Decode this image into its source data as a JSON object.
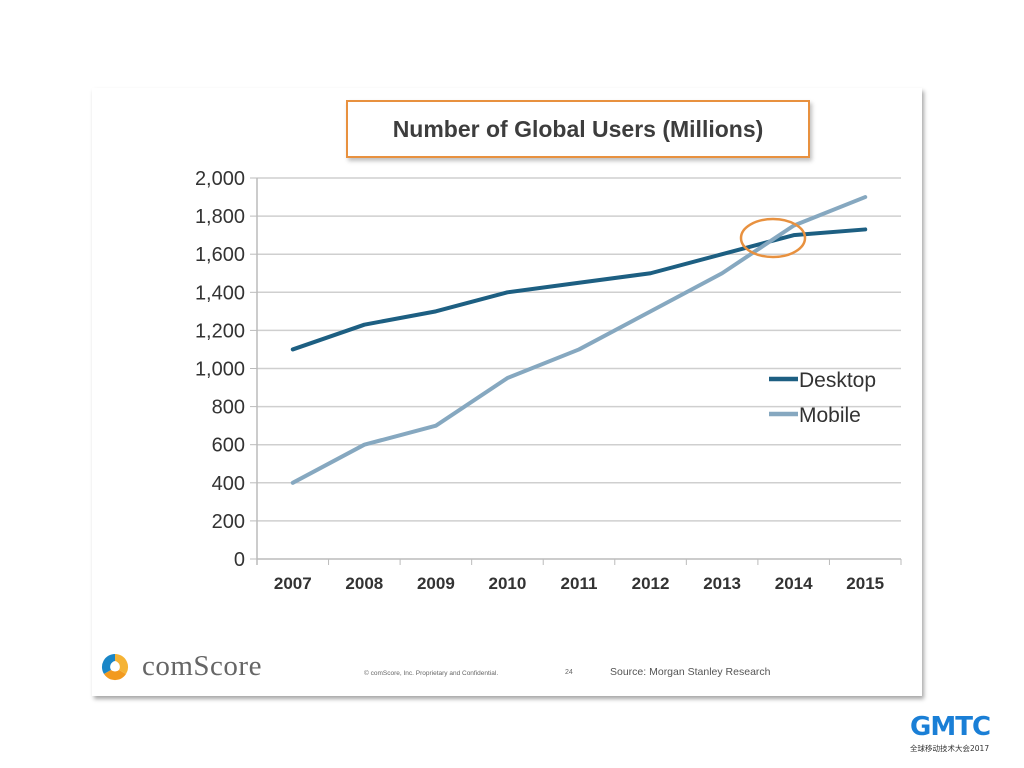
{
  "chart_data": {
    "type": "line",
    "title": "Number of Global Users (Millions)",
    "xlabel": "",
    "ylabel": "",
    "categories": [
      "2007",
      "2008",
      "2009",
      "2010",
      "2011",
      "2012",
      "2013",
      "2014",
      "2015"
    ],
    "series": [
      {
        "name": "Desktop",
        "color": "#1d5f82",
        "values": [
          1100,
          1230,
          1300,
          1400,
          1450,
          1500,
          1600,
          1700,
          1730
        ]
      },
      {
        "name": "Mobile",
        "color": "#86a8c0",
        "values": [
          400,
          600,
          700,
          950,
          1100,
          1300,
          1500,
          1750,
          1900
        ]
      }
    ],
    "ylim": [
      0,
      2000
    ],
    "yticks": [
      0,
      200,
      400,
      600,
      800,
      1000,
      1200,
      1400,
      1600,
      1800,
      2000
    ],
    "ytick_labels": [
      "0",
      "200",
      "400",
      "600",
      "800",
      "1,000",
      "1,200",
      "1,400",
      "1,600",
      "1,800",
      "2,000"
    ],
    "grid": true,
    "legend": "right",
    "annotation": {
      "type": "ellipse-highlight",
      "near": "2013-2014 crossover",
      "color": "#e8913f"
    }
  },
  "footer": {
    "brand": "comScore",
    "copyright": "© comScore, Inc.  Proprietary and Confidential.",
    "page_number": "24",
    "source": "Source: Morgan Stanley Research"
  },
  "watermark": {
    "logo": "GMTC",
    "subtitle": "全球移动技术大会2017"
  },
  "colors": {
    "accent": "#e8913f",
    "desktop": "#1d5f82",
    "mobile": "#86a8c0",
    "gmtc": "#1a7fd6"
  }
}
